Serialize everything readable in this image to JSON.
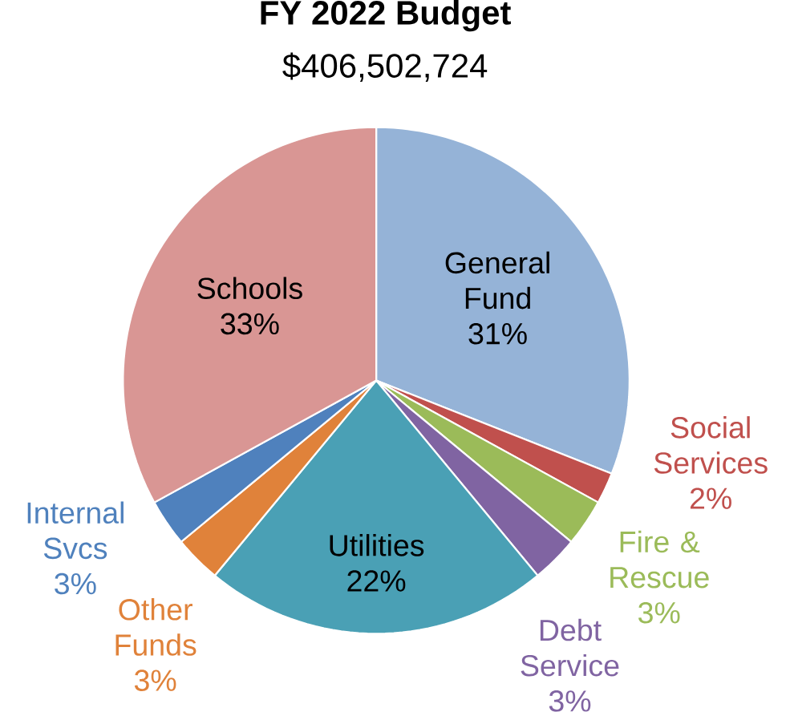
{
  "chart_data": {
    "type": "pie",
    "title": "FY 2022 Budget",
    "subtitle": "$406,502,724",
    "categories": [
      "General Fund",
      "Social Services",
      "Fire & Rescue",
      "Debt Service",
      "Utilities",
      "Other Funds",
      "Internal Svcs",
      "Schools"
    ],
    "values": [
      31,
      2,
      3,
      3,
      22,
      3,
      3,
      33
    ],
    "value_labels": [
      "31%",
      "2%",
      "3%",
      "3%",
      "22%",
      "3%",
      "3%",
      "33%"
    ],
    "colors": [
      "#95b3d7",
      "#c0504d",
      "#9bbb59",
      "#8064a2",
      "#4aa0b5",
      "#e0823a",
      "#4f81bd",
      "#d99694"
    ]
  }
}
